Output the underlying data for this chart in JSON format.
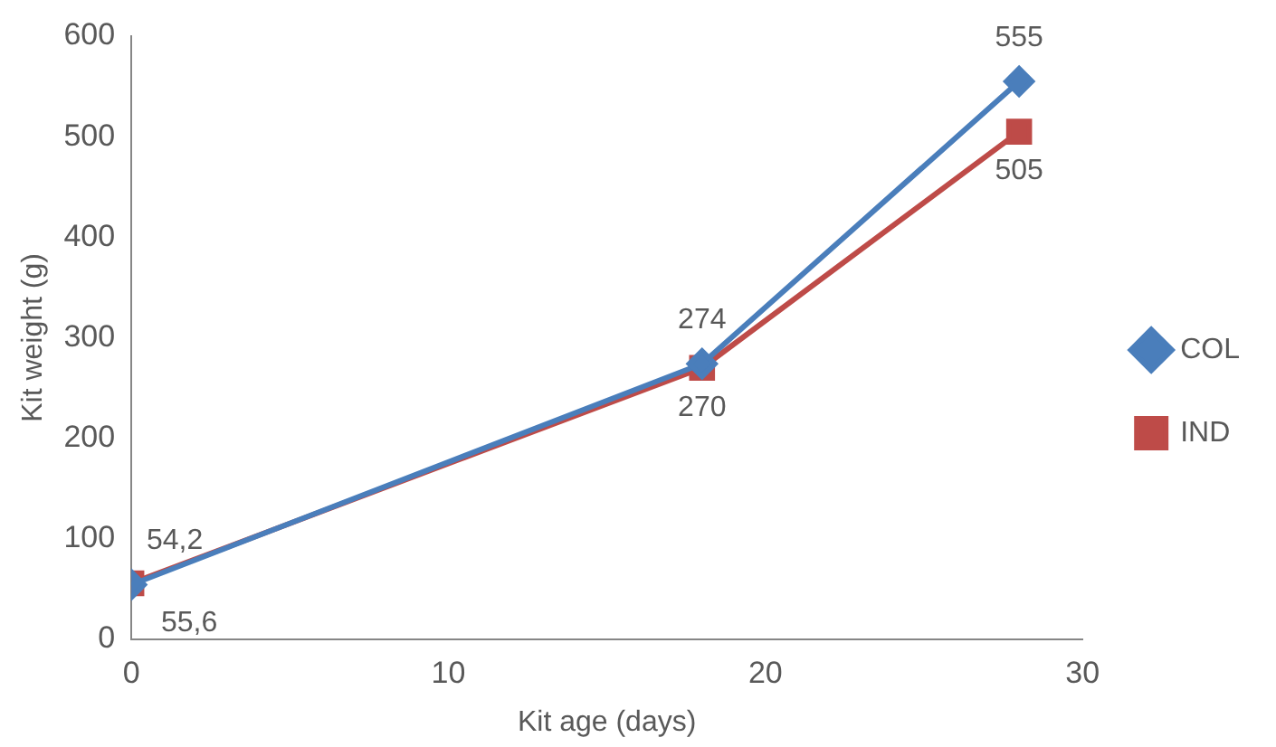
{
  "chart_data": {
    "type": "line",
    "xlabel": "Kit age (days)",
    "ylabel": "Kit weight (g)",
    "xlim": [
      0,
      30
    ],
    "xticks": [
      0,
      10,
      20,
      30
    ],
    "ylim": [
      0,
      600
    ],
    "yticks": [
      0,
      100,
      200,
      300,
      400,
      500,
      600
    ],
    "grid": false,
    "legend": "right",
    "line_style": "solid",
    "series": [
      {
        "name": "COL",
        "color": "#4a7ebb",
        "marker": "diamond",
        "x": [
          0,
          18,
          28
        ],
        "values": [
          54.2,
          274,
          555
        ],
        "value_labels": [
          "54,2",
          "274",
          "555"
        ]
      },
      {
        "name": "IND",
        "color": "#be4b48",
        "marker": "square",
        "x": [
          0,
          18,
          28
        ],
        "values": [
          55.6,
          270,
          505
        ],
        "value_labels": [
          "55,6",
          "270",
          "505"
        ]
      }
    ]
  }
}
